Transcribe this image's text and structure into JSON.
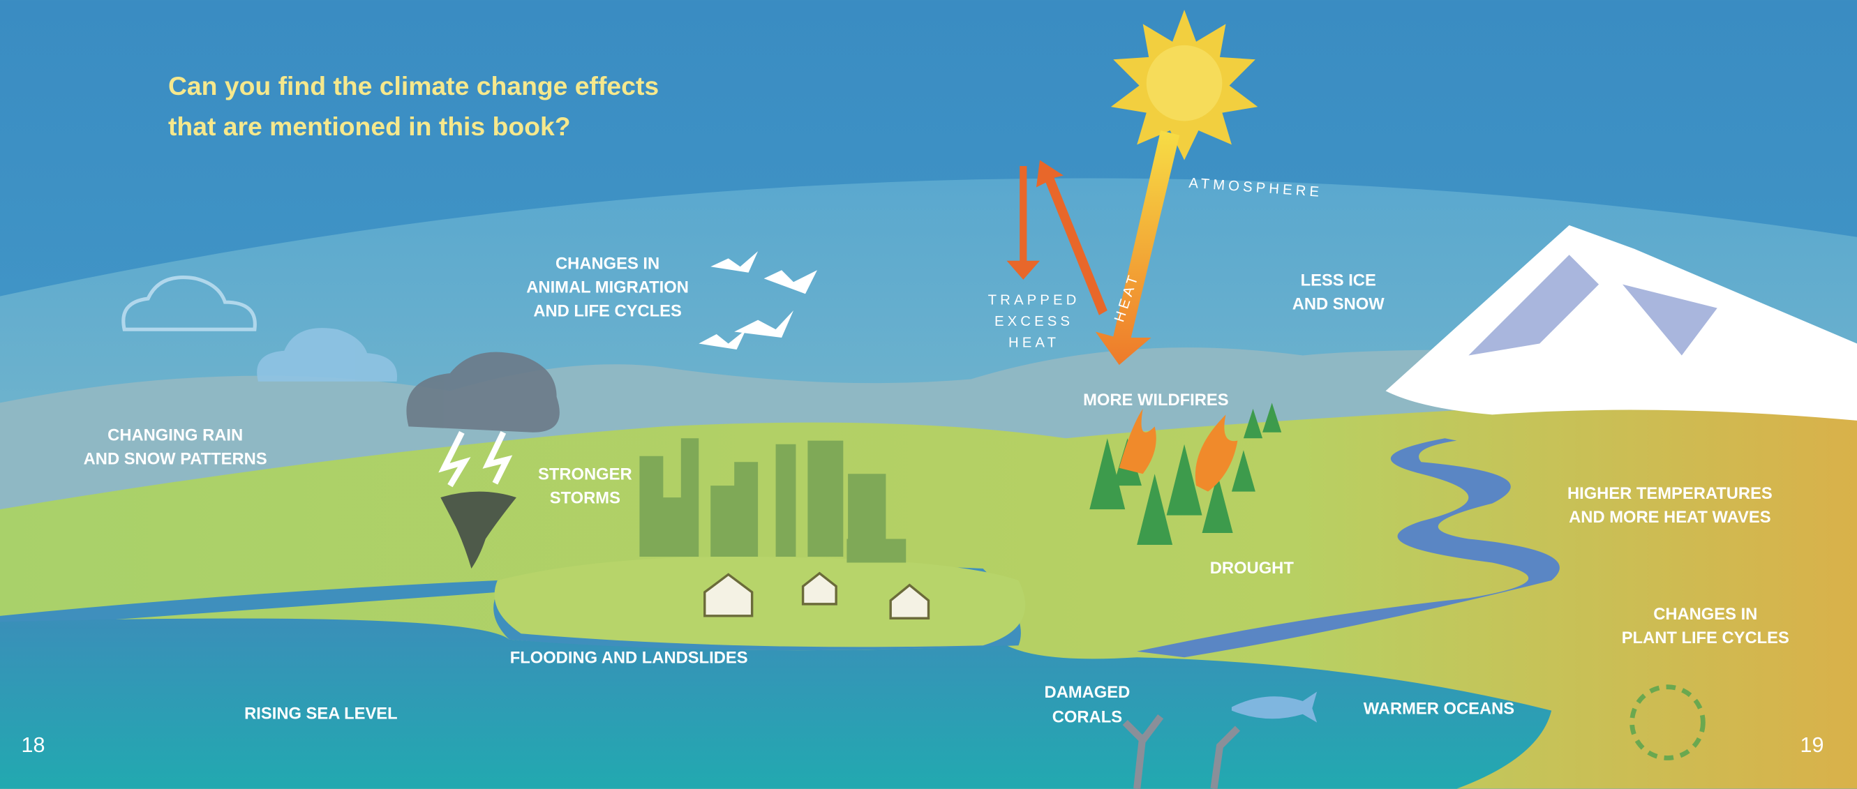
{
  "question": {
    "lines": [
      "Can you find the climate change effects",
      "that are mentioned in this book?"
    ]
  },
  "labels": {
    "atmosphere": "ATMOSPHERE",
    "trapped_heat": [
      "TRAPPED",
      "EXCESS",
      "HEAT"
    ],
    "heat": "HEAT",
    "less_ice": [
      "LESS ICE",
      "AND SNOW"
    ],
    "animal_migration": [
      "CHANGES IN",
      "ANIMAL MIGRATION",
      "AND LIFE CYCLES"
    ],
    "rain_snow": [
      "CHANGING RAIN",
      "AND SNOW PATTERNS"
    ],
    "storms": [
      "STRONGER",
      "STORMS"
    ],
    "wildfires": "MORE WILDFIRES",
    "drought": "DROUGHT",
    "heat_waves": [
      "HIGHER TEMPERATURES",
      "AND MORE HEAT WAVES"
    ],
    "plant_cycles": [
      "CHANGES IN",
      "PLANT LIFE CYCLES"
    ],
    "flooding": "FLOODING AND LANDSLIDES",
    "corals": [
      "DAMAGED",
      "CORALS"
    ],
    "warmer_oceans": "WARMER OCEANS",
    "sea_level": "RISING SEA LEVEL"
  },
  "page_numbers": {
    "left": "18",
    "right": "19"
  }
}
